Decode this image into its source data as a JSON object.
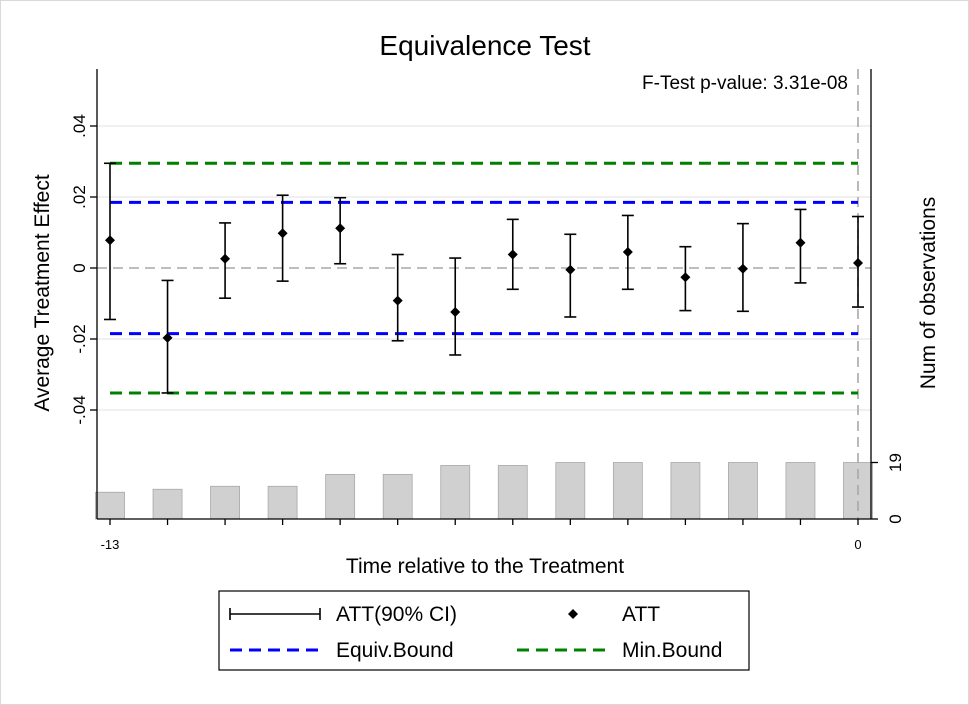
{
  "chart_data": {
    "type": "scatter",
    "title": "Equivalence Test",
    "xlabel": "Time relative to the Treatment",
    "ylabel": "Average Treatment Effect",
    "y2label": "Num of observations",
    "annotation": "F-Test p-value: 3.31e-08",
    "xlim": [
      -13,
      0
    ],
    "x_ticks": [
      "-13",
      "0"
    ],
    "ylim": [
      -0.04,
      0.04
    ],
    "y_ticks": [
      ".04",
      ".02",
      "0",
      "-.02",
      "-.04"
    ],
    "y_tick_values": [
      0.04,
      0.02,
      0,
      -0.02,
      -0.04
    ],
    "y2_ticks": [
      "19",
      "0"
    ],
    "y2_tick_values": [
      19,
      0
    ],
    "grid": true,
    "x": [
      -13,
      -12,
      -11,
      -10,
      -9,
      -8,
      -7,
      -6,
      -5,
      -4,
      -3,
      -2,
      -1,
      0
    ],
    "att": [
      0.0078,
      -0.0197,
      0.0026,
      0.0098,
      0.0112,
      -0.0092,
      -0.0124,
      0.0038,
      -0.0005,
      0.0045,
      -0.0026,
      -0.0002,
      0.0071,
      0.0014
    ],
    "ci_lower": [
      -0.0145,
      -0.0352,
      -0.0085,
      -0.0037,
      0.0012,
      -0.0205,
      -0.0245,
      -0.006,
      -0.0138,
      -0.006,
      -0.012,
      -0.0122,
      -0.0042,
      -0.011
    ],
    "ci_upper": [
      0.0295,
      -0.0035,
      0.0127,
      0.0205,
      0.0198,
      0.0038,
      0.0028,
      0.0137,
      0.0095,
      0.0148,
      0.006,
      0.0125,
      0.0165,
      0.0145
    ],
    "equiv_bound": [
      -0.0185,
      0.0185
    ],
    "min_bound": [
      -0.0352,
      0.0295
    ],
    "num_obs": [
      9,
      10,
      11,
      11,
      15,
      15,
      18,
      18,
      19,
      19,
      19,
      19,
      19,
      19
    ],
    "legend": {
      "placement": "bottom",
      "entries": [
        "ATT(90% CI)",
        "ATT",
        "Equiv.Bound",
        "Min.Bound"
      ]
    },
    "colors": {
      "point": "#000000",
      "equiv_bound": "#0000ff",
      "min_bound": "#008000",
      "bars": "#d0d0d0",
      "zero_line": "#a9a9a9",
      "grid": "#e6e6e6"
    }
  }
}
